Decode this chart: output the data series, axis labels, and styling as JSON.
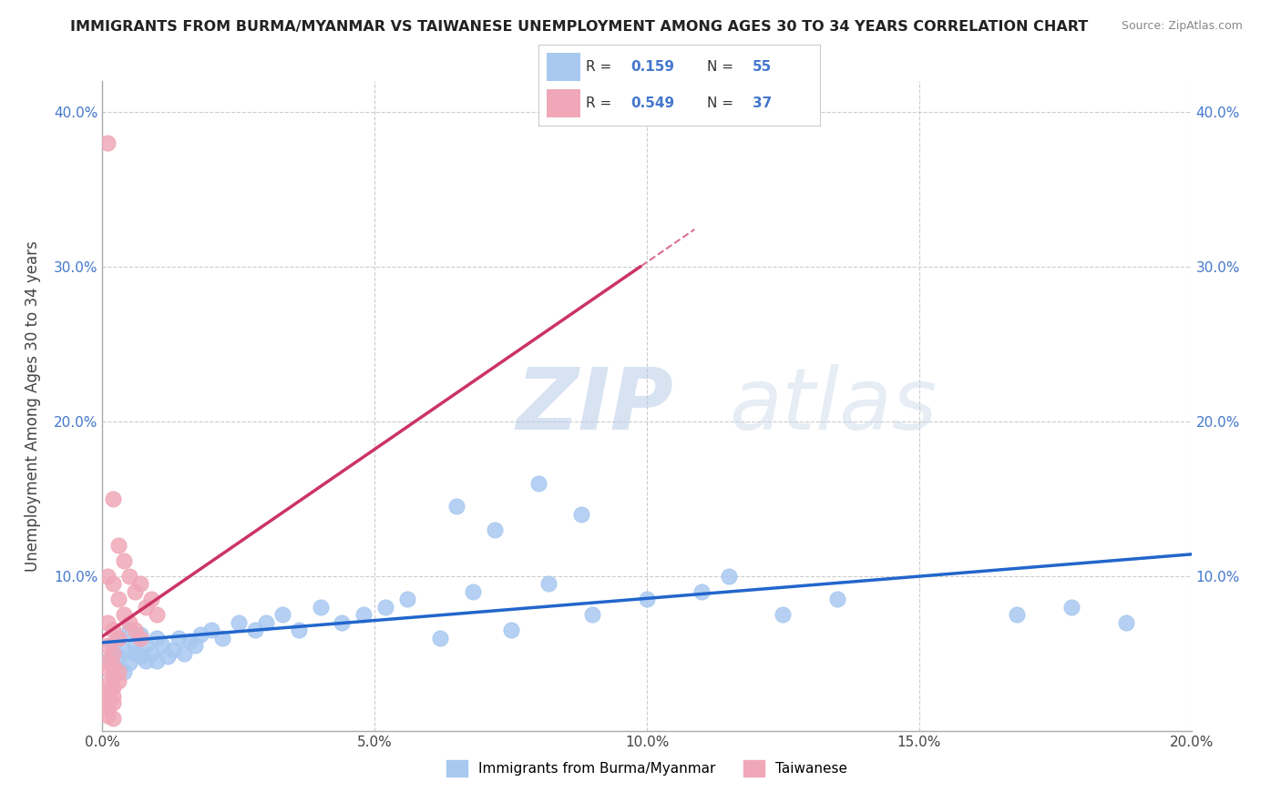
{
  "title": "IMMIGRANTS FROM BURMA/MYANMAR VS TAIWANESE UNEMPLOYMENT AMONG AGES 30 TO 34 YEARS CORRELATION CHART",
  "source": "Source: ZipAtlas.com",
  "ylabel": "Unemployment Among Ages 30 to 34 years",
  "xlim": [
    0.0,
    0.2
  ],
  "ylim": [
    0.0,
    0.42
  ],
  "xtick_vals": [
    0.0,
    0.05,
    0.1,
    0.15,
    0.2
  ],
  "xtick_labels": [
    "0.0%",
    "5.0%",
    "10.0%",
    "15.0%",
    "20.0%"
  ],
  "ytick_vals": [
    0.1,
    0.2,
    0.3,
    0.4
  ],
  "ytick_labels": [
    "10.0%",
    "20.0%",
    "30.0%",
    "40.0%"
  ],
  "blue_color": "#a8c8f0",
  "pink_color": "#f0a8b8",
  "blue_line_color": "#2266cc",
  "pink_line_color": "#cc3366",
  "pink_dash_color": "#cc3366",
  "watermark_zip": "ZIP",
  "watermark_atlas": "atlas",
  "R_blue": 0.159,
  "N_blue": 55,
  "R_pink": 0.549,
  "N_pink": 37,
  "legend_label_blue": "Immigrants from Burma/Myanmar",
  "legend_label_pink": "Taiwanese",
  "blue_scatter_x": [
    0.001,
    0.002,
    0.002,
    0.003,
    0.003,
    0.004,
    0.004,
    0.005,
    0.005,
    0.006,
    0.006,
    0.007,
    0.007,
    0.008,
    0.008,
    0.009,
    0.01,
    0.01,
    0.011,
    0.012,
    0.013,
    0.014,
    0.015,
    0.016,
    0.017,
    0.018,
    0.02,
    0.022,
    0.025,
    0.028,
    0.03,
    0.033,
    0.036,
    0.04,
    0.044,
    0.048,
    0.052,
    0.056,
    0.062,
    0.068,
    0.075,
    0.082,
    0.09,
    0.1,
    0.11,
    0.115,
    0.125,
    0.135,
    0.065,
    0.072,
    0.08,
    0.088,
    0.168,
    0.178,
    0.188
  ],
  "blue_scatter_y": [
    0.045,
    0.055,
    0.042,
    0.048,
    0.06,
    0.052,
    0.038,
    0.065,
    0.044,
    0.05,
    0.055,
    0.048,
    0.062,
    0.045,
    0.055,
    0.05,
    0.06,
    0.045,
    0.055,
    0.048,
    0.052,
    0.06,
    0.05,
    0.058,
    0.055,
    0.062,
    0.065,
    0.06,
    0.07,
    0.065,
    0.07,
    0.075,
    0.065,
    0.08,
    0.07,
    0.075,
    0.08,
    0.085,
    0.06,
    0.09,
    0.065,
    0.095,
    0.075,
    0.085,
    0.09,
    0.1,
    0.075,
    0.085,
    0.145,
    0.13,
    0.16,
    0.14,
    0.075,
    0.08,
    0.07
  ],
  "pink_scatter_x": [
    0.001,
    0.002,
    0.003,
    0.004,
    0.005,
    0.006,
    0.007,
    0.008,
    0.009,
    0.01,
    0.001,
    0.002,
    0.003,
    0.004,
    0.005,
    0.006,
    0.007,
    0.001,
    0.002,
    0.003,
    0.001,
    0.002,
    0.001,
    0.002,
    0.003,
    0.001,
    0.002,
    0.003,
    0.001,
    0.002,
    0.001,
    0.002,
    0.001,
    0.002,
    0.001,
    0.001,
    0.002
  ],
  "pink_scatter_y": [
    0.38,
    0.15,
    0.12,
    0.11,
    0.1,
    0.09,
    0.095,
    0.08,
    0.085,
    0.075,
    0.1,
    0.095,
    0.085,
    0.075,
    0.07,
    0.065,
    0.06,
    0.07,
    0.065,
    0.06,
    0.055,
    0.05,
    0.045,
    0.042,
    0.038,
    0.04,
    0.035,
    0.032,
    0.03,
    0.028,
    0.025,
    0.022,
    0.02,
    0.018,
    0.015,
    0.01,
    0.008
  ]
}
